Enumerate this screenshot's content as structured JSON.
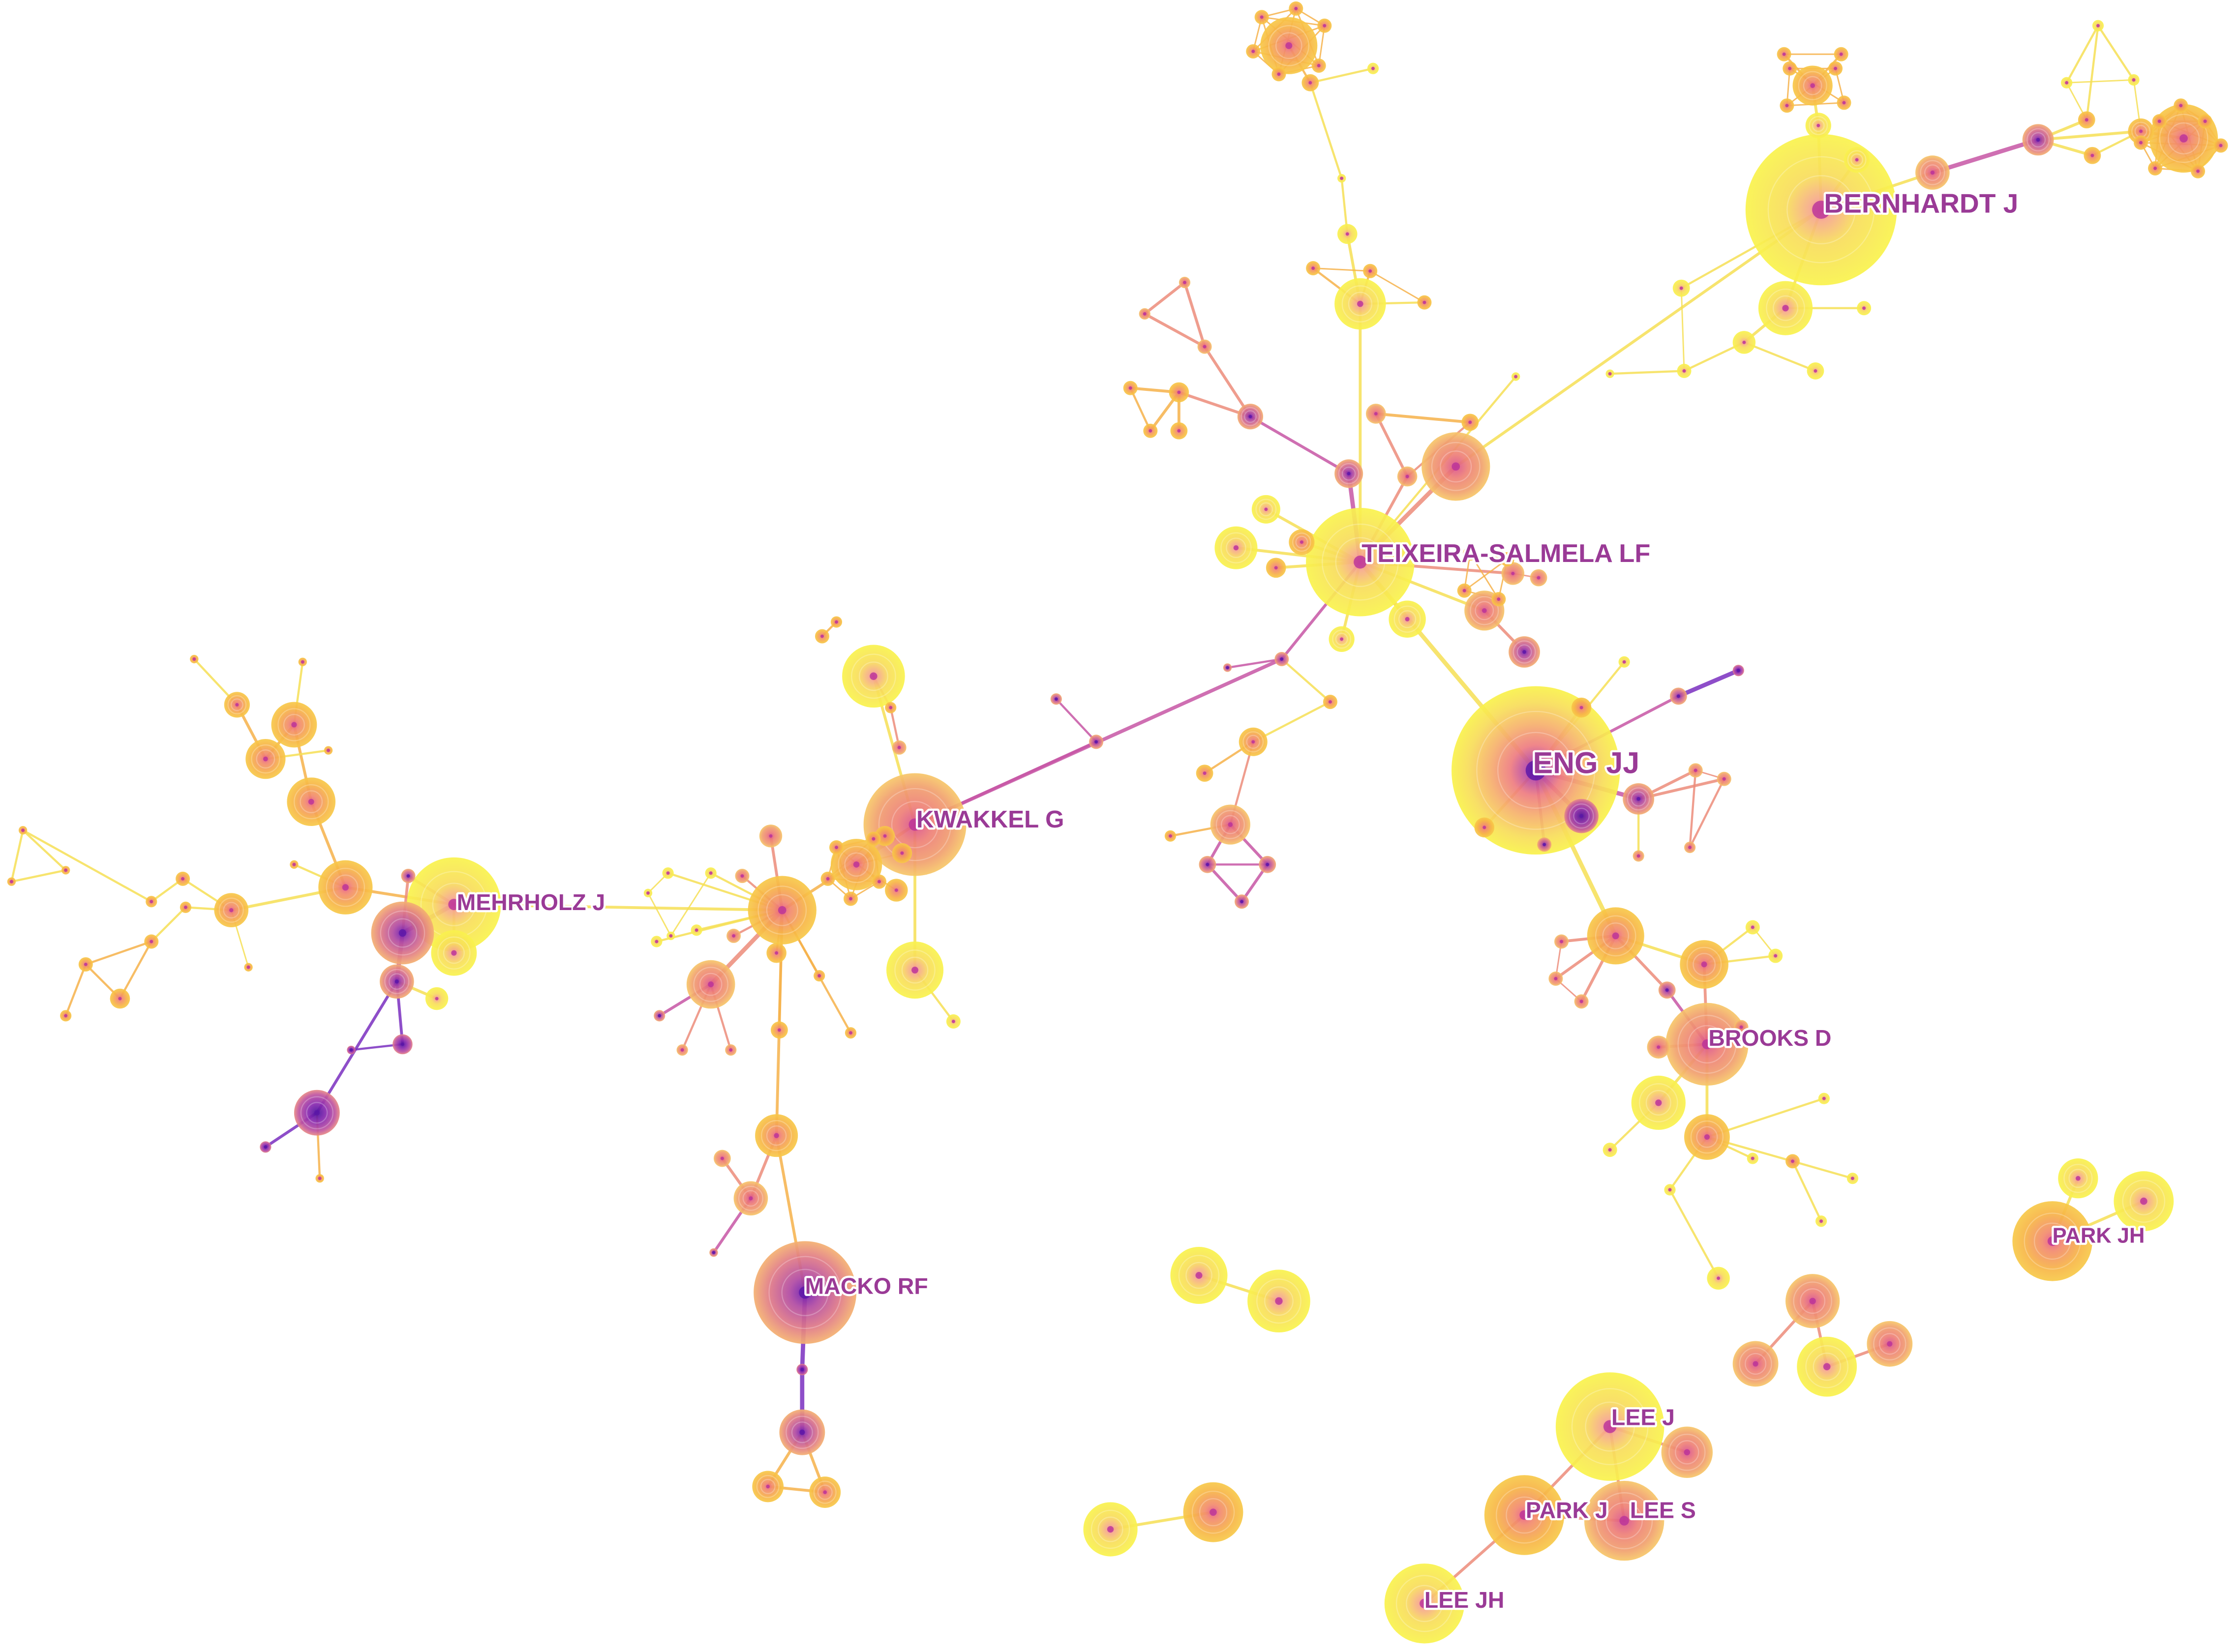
{
  "title": "",
  "labels": {
    "bernhardt": "BERNHARDT J",
    "teixeira": "TEIXEIRA-SALMELA LF",
    "eng": "ENG JJ",
    "kwakkel": "KWAKKEL G",
    "mehrholz": "MEHRHOLZ J",
    "brooks": "BROOKS D",
    "macko": "MACKO RF",
    "lee_j": "LEE J",
    "park_j": "PARK J",
    "lee_s": "LEE S",
    "lee_jh": "LEE JH",
    "park_jh": "PARK JH"
  },
  "colors": {
    "background": "#ffffff",
    "label": "#9a3a96",
    "early_years": "#5b16a8",
    "mid_years_magenta": "#b9329a",
    "mid_years_salmon": "#ec7a74",
    "late_years_orange": "#f7a33c",
    "recent_years_yellow": "#f9f24a"
  }
}
